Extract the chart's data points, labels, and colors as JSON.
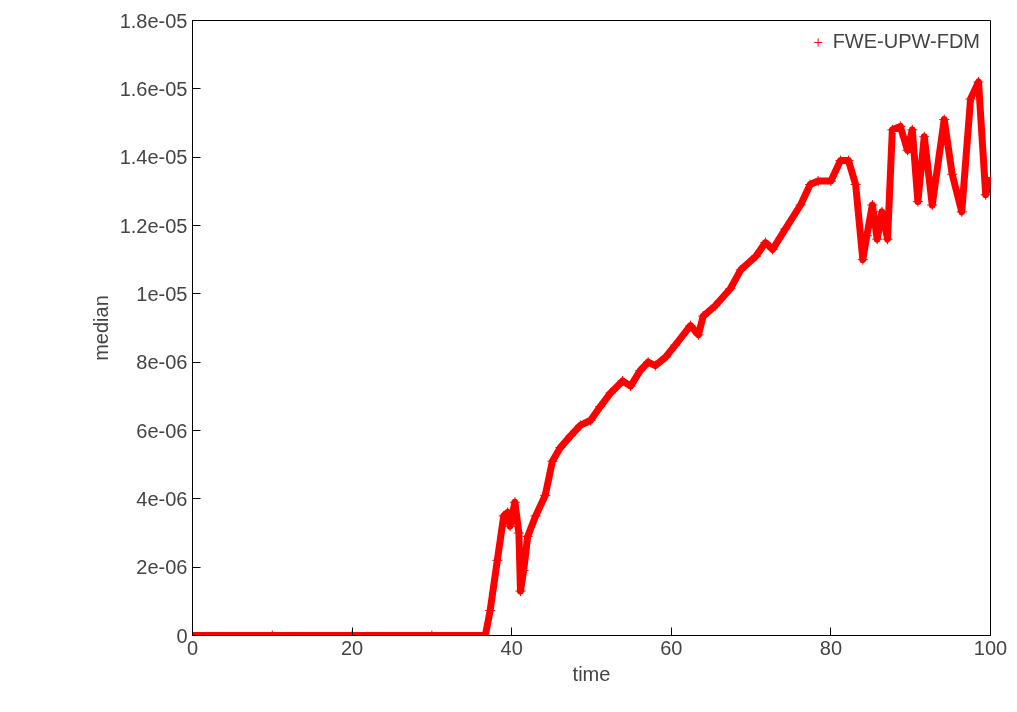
{
  "chart_data": {
    "type": "line",
    "xlabel": "time",
    "ylabel": "median",
    "marker": "cross",
    "legend": "top right",
    "grid": false,
    "xlim": [
      0,
      100
    ],
    "ylim": [
      0,
      1.8e-05
    ],
    "xticks": [
      0,
      20,
      40,
      60,
      80,
      100
    ],
    "yticks": [
      {
        "value": 0,
        "label": "0"
      },
      {
        "value": 2e-06,
        "label": "2e-06"
      },
      {
        "value": 4e-06,
        "label": "4e-06"
      },
      {
        "value": 6e-06,
        "label": "6e-06"
      },
      {
        "value": 8e-06,
        "label": "8e-06"
      },
      {
        "value": 1e-05,
        "label": "1e-05"
      },
      {
        "value": 1.2e-05,
        "label": "1.2e-05"
      },
      {
        "value": 1.4e-05,
        "label": "1.4e-05"
      },
      {
        "value": 1.6e-05,
        "label": "1.6e-05"
      },
      {
        "value": 1.8e-05,
        "label": "1.8e-05"
      }
    ],
    "series": [
      {
        "name": "FWE-UPW-FDM",
        "color": "#ff0000",
        "x": [
          0,
          10,
          20,
          30,
          36.7,
          37.3,
          38.2,
          39.0,
          39.5,
          39.8,
          40.4,
          40.9,
          41.1,
          41.5,
          42,
          43,
          44.2,
          45.1,
          46.1,
          47.4,
          48.6,
          49.9,
          51.1,
          52.4,
          53.9,
          54.9,
          56.1,
          57.1,
          58.0,
          59.3,
          60.5,
          62.4,
          63.4,
          64.0,
          65.5,
          67.4,
          68.7,
          70.6,
          71.8,
          72.7,
          74.3,
          76.2,
          77.4,
          78.4,
          80,
          81.2,
          82.2,
          83.1,
          84,
          84.5,
          85.2,
          85.8,
          86.4,
          87.1,
          87.7,
          88.7,
          89.6,
          90.2,
          90.9,
          91.7,
          92.7,
          94.2,
          95.2,
          96.4,
          97.5,
          98.5,
          99.4,
          100
        ],
        "values": [
          0,
          0,
          0,
          0,
          0,
          7.3e-07,
          2.2e-06,
          3.5e-06,
          3.6e-06,
          3.2e-06,
          3.9e-06,
          3e-06,
          1.3e-06,
          1.9e-06,
          2.9e-06,
          3.5e-06,
          4.1e-06,
          5.1e-06,
          5.5e-06,
          5.85e-06,
          6.15e-06,
          6.3e-06,
          6.7e-06,
          7.1e-06,
          7.45e-06,
          7.3e-06,
          7.75e-06,
          8e-06,
          7.9e-06,
          8.15e-06,
          8.5e-06,
          9.07e-06,
          8.8e-06,
          9.35e-06,
          9.65e-06,
          1.015e-05,
          1.07e-05,
          1.11e-05,
          1.15e-05,
          1.13e-05,
          1.19e-05,
          1.26e-05,
          1.32e-05,
          1.33e-05,
          1.33e-05,
          1.39e-05,
          1.39e-05,
          1.32e-05,
          1.1e-05,
          1.17e-05,
          1.26e-05,
          1.16e-05,
          1.24e-05,
          1.16e-05,
          1.48e-05,
          1.49e-05,
          1.42e-05,
          1.48e-05,
          1.27e-05,
          1.46e-05,
          1.26e-05,
          1.51e-05,
          1.35e-05,
          1.24e-05,
          1.57e-05,
          1.62e-05,
          1.29e-05,
          1.34e-05
        ]
      }
    ]
  }
}
